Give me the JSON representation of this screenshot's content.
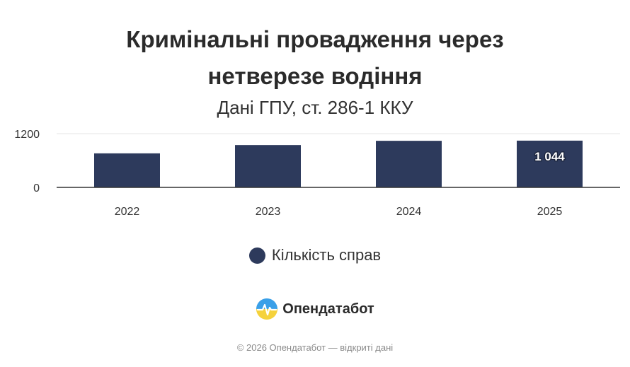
{
  "chart_data": {
    "type": "bar",
    "title": [
      "Кримінальні провадження через",
      "нетверезе водіння"
    ],
    "subtitle": "Дані ГПУ, ст. 286-1 ККУ",
    "categories": [
      "2022",
      "2023",
      "2024",
      "2025"
    ],
    "series": [
      {
        "name": "Кількість справ",
        "values": [
          760,
          945,
          1040,
          1044
        ],
        "data_labels": [
          "",
          "",
          "",
          "1 044"
        ],
        "color": "#2d3a5c"
      }
    ],
    "y_ticks": [
      0,
      1200
    ],
    "ylim": [
      0,
      1200
    ],
    "grid": true,
    "legend_position": "bottom-center"
  },
  "brand": {
    "name": "Опендатабот"
  },
  "footer": {
    "text": "© 2026 Опендатабот — відкриті дані"
  },
  "colors": {
    "bar": "#2d3a5c",
    "grid": "#e6e6e6",
    "axis": "#333333",
    "logo_blue": "#3aa0e8",
    "logo_yellow": "#f5d23c"
  }
}
